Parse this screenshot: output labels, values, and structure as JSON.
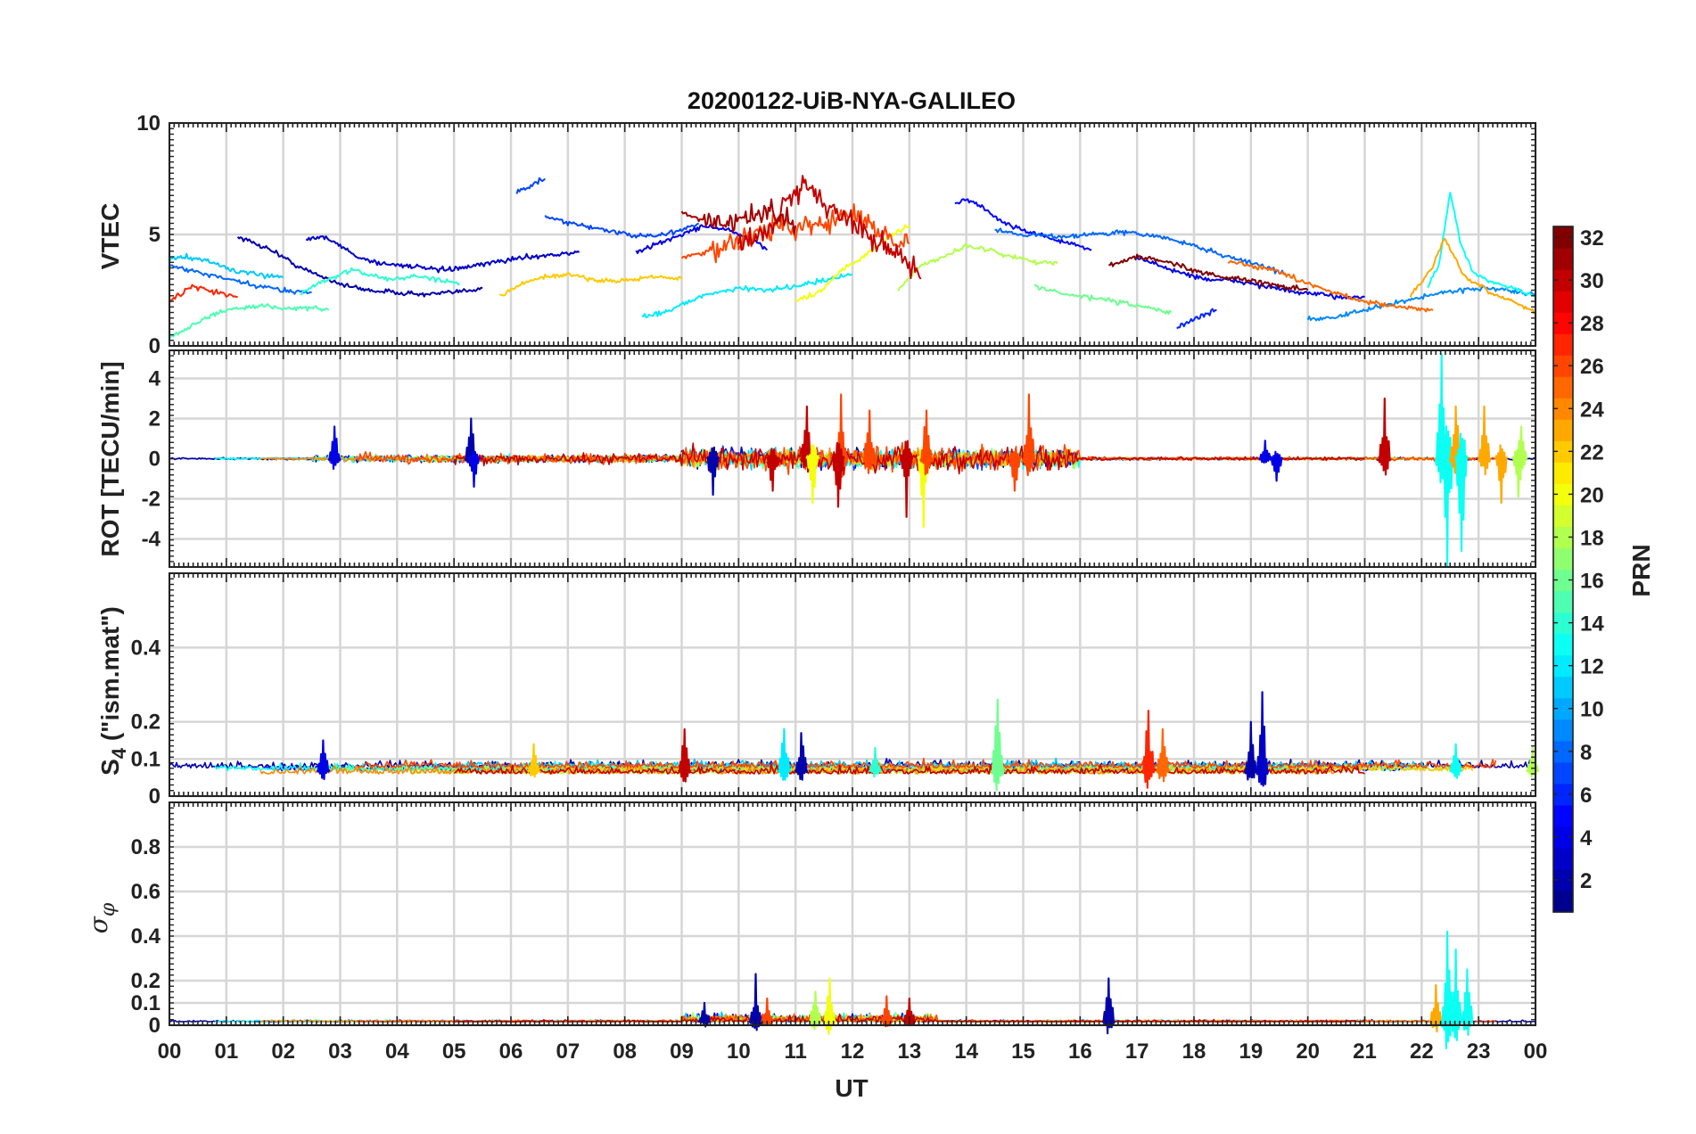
{
  "figure": {
    "title": "20200122-UiB-NYA-GALILEO",
    "xlabel": "UT",
    "x_ticks": [
      "00",
      "01",
      "02",
      "03",
      "04",
      "05",
      "06",
      "07",
      "08",
      "09",
      "10",
      "11",
      "12",
      "13",
      "14",
      "15",
      "16",
      "17",
      "18",
      "19",
      "20",
      "21",
      "22",
      "23",
      "00"
    ]
  },
  "colorbar": {
    "label": "PRN",
    "range": [
      1,
      32
    ],
    "ticks": [
      "2",
      "4",
      "6",
      "8",
      "10",
      "12",
      "14",
      "16",
      "18",
      "20",
      "22",
      "24",
      "26",
      "28",
      "30",
      "32"
    ],
    "colormap": "jet",
    "colors": [
      "#00008f",
      "#0000ff",
      "#0080ff",
      "#00ffff",
      "#80ff80",
      "#ffff00",
      "#ff8000",
      "#ff0000",
      "#800000"
    ]
  },
  "panels": {
    "vtec": {
      "ylabel": "VTEC",
      "ylim": [
        0,
        10
      ],
      "ytick_labels": [
        "0",
        "5",
        "10"
      ]
    },
    "rot": {
      "ylabel": "ROT [TECU/min]",
      "ylim": [
        -5.4,
        5.4
      ],
      "ytick_labels": [
        "-4",
        "-2",
        "0",
        "2",
        "4"
      ]
    },
    "s4": {
      "ylabel_main": "S",
      "ylabel_sub": "4",
      "ylabel_rest": " (\"ism.mat\")",
      "ylim": [
        0,
        0.6
      ],
      "ytick_labels": [
        "0",
        "0.1",
        "0.2",
        "0.4"
      ]
    },
    "sigma": {
      "ylabel_main": "σ",
      "ylabel_sub": "φ",
      "ylim": [
        0,
        1
      ],
      "ytick_labels": [
        "0",
        "0.1",
        "0.2",
        "0.4",
        "0.6",
        "0.8"
      ]
    }
  },
  "chart_data": [
    {
      "type": "line",
      "title": "20200122-UiB-NYA-GALILEO",
      "ylabel": "VTEC",
      "xlim": [
        0,
        24
      ],
      "ylim": [
        0,
        10
      ],
      "grid": true,
      "series": [
        {
          "prn": 2,
          "x": [
            1.2,
            1.8,
            2.3,
            2.8,
            3.1,
            3.5,
            4.0,
            4.5,
            5.0,
            5.5
          ],
          "y": [
            4.9,
            4.3,
            3.5,
            3.0,
            2.7,
            2.5,
            2.4,
            2.3,
            2.4,
            2.6
          ]
        },
        {
          "prn": 3,
          "x": [
            2.4,
            2.7,
            3.0,
            3.3,
            3.7,
            4.2,
            4.7,
            5.2,
            5.8,
            6.3,
            6.8,
            7.2
          ],
          "y": [
            4.8,
            4.9,
            4.5,
            4.0,
            3.7,
            3.6,
            3.4,
            3.5,
            3.8,
            4.0,
            4.1,
            4.2
          ]
        },
        {
          "prn": 4,
          "x": [
            8.2,
            8.6,
            9.0,
            9.4,
            9.8,
            10.2,
            10.5
          ],
          "y": [
            4.2,
            4.6,
            5.0,
            5.4,
            5.2,
            4.8,
            4.3
          ]
        },
        {
          "prn": 5,
          "x": [
            13.8,
            14.0,
            14.3,
            14.6,
            15.0,
            15.4,
            15.8,
            16.2
          ],
          "y": [
            6.4,
            6.6,
            6.2,
            5.6,
            5.2,
            4.9,
            4.6,
            4.3
          ]
        },
        {
          "prn": 6,
          "x": [
            17.7,
            17.9,
            18.1,
            18.4
          ],
          "y": [
            0.8,
            1.1,
            1.3,
            1.6
          ]
        },
        {
          "prn": 4,
          "x": [
            17.0,
            17.6,
            18.2,
            18.8,
            19.4,
            19.8,
            20.2,
            20.6,
            21.0
          ],
          "y": [
            4.0,
            3.4,
            3.0,
            2.9,
            2.6,
            2.4,
            2.3,
            2.2,
            2.2
          ]
        },
        {
          "prn": 7,
          "x": [
            6.1,
            6.3,
            6.5,
            6.6
          ],
          "y": [
            6.9,
            7.1,
            7.4,
            7.5
          ]
        },
        {
          "prn": 7,
          "x": [
            6.6,
            7.0,
            7.5,
            8.0,
            8.5,
            9.0,
            9.3
          ],
          "y": [
            5.8,
            5.5,
            5.3,
            5.0,
            4.9,
            5.2,
            5.5
          ]
        },
        {
          "prn": 8,
          "x": [
            0.0,
            0.5,
            1.0,
            1.5,
            2.0,
            2.5
          ],
          "y": [
            3.6,
            3.3,
            3.0,
            2.7,
            2.5,
            2.4
          ]
        },
        {
          "prn": 8,
          "x": [
            14.5,
            15.0,
            15.6,
            16.2,
            16.8,
            17.4,
            18.0,
            18.6,
            19.2,
            19.6
          ],
          "y": [
            5.2,
            5.0,
            4.9,
            5.0,
            5.1,
            4.9,
            4.5,
            4.0,
            3.6,
            3.2
          ]
        },
        {
          "prn": 9,
          "x": [
            20.0,
            20.5,
            21.0,
            21.5,
            22.0,
            22.6,
            23.2,
            23.7,
            24.0
          ],
          "y": [
            1.2,
            1.3,
            1.6,
            1.9,
            2.2,
            2.5,
            2.6,
            2.4,
            2.3
          ]
        },
        {
          "prn": 11,
          "x": [
            0.0,
            0.3,
            0.7,
            1.1,
            1.5,
            2.0
          ],
          "y": [
            3.9,
            4.0,
            3.8,
            3.4,
            3.2,
            3.1
          ]
        },
        {
          "prn": 12,
          "x": [
            8.3,
            8.8,
            9.2,
            9.6,
            10.0,
            10.4,
            10.8,
            11.2,
            11.6,
            12.0
          ],
          "y": [
            1.3,
            1.6,
            2.1,
            2.4,
            2.6,
            2.5,
            2.6,
            2.8,
            3.0,
            3.2
          ]
        },
        {
          "prn": 13,
          "x": [
            22.1,
            22.3,
            22.5,
            22.7,
            22.9,
            23.3,
            23.6,
            24.0
          ],
          "y": [
            2.6,
            3.6,
            6.9,
            4.5,
            3.3,
            2.8,
            2.6,
            2.2
          ]
        },
        {
          "prn": 14,
          "x": [
            2.3,
            2.6,
            2.9,
            3.2,
            3.5,
            3.9,
            4.3,
            4.7,
            5.1
          ],
          "y": [
            2.3,
            2.8,
            3.1,
            3.4,
            3.2,
            3.0,
            3.1,
            3.0,
            2.8
          ]
        },
        {
          "prn": 15,
          "x": [
            0.0,
            0.3,
            0.6,
            0.9,
            1.2,
            1.6,
            2.0,
            2.5,
            2.8
          ],
          "y": [
            0.4,
            0.8,
            1.2,
            1.5,
            1.7,
            1.8,
            1.7,
            1.7,
            1.6
          ]
        },
        {
          "prn": 16,
          "x": [
            15.2,
            15.6,
            16.0,
            16.4,
            16.8,
            17.2,
            17.6
          ],
          "y": [
            2.7,
            2.4,
            2.2,
            2.1,
            1.9,
            1.7,
            1.5
          ]
        },
        {
          "prn": 18,
          "x": [
            12.8,
            13.2,
            13.6,
            14.0,
            14.4,
            14.8,
            15.2,
            15.6
          ],
          "y": [
            2.5,
            3.6,
            4.0,
            4.5,
            4.3,
            4.0,
            3.8,
            3.7
          ]
        },
        {
          "prn": 20,
          "x": [
            11.0,
            11.4,
            11.8,
            12.2,
            12.6,
            13.0
          ],
          "y": [
            2.0,
            2.4,
            3.4,
            4.0,
            4.8,
            5.4
          ]
        },
        {
          "prn": 22,
          "x": [
            5.8,
            6.2,
            6.6,
            7.0,
            7.4,
            7.8,
            8.2,
            8.6,
            9.0
          ],
          "y": [
            2.2,
            2.8,
            3.1,
            3.2,
            3.0,
            2.9,
            3.0,
            3.1,
            3.0
          ]
        },
        {
          "prn": 23,
          "x": [
            21.8,
            22.2,
            22.4,
            22.6,
            22.8,
            23.2,
            23.6,
            24.0
          ],
          "y": [
            2.2,
            3.6,
            4.8,
            3.8,
            3.0,
            2.4,
            2.0,
            1.5
          ]
        },
        {
          "prn": 25,
          "x": [
            18.6,
            19.0,
            19.4,
            19.8,
            20.2,
            20.6,
            21.0,
            21.4,
            21.8,
            22.2
          ],
          "y": [
            3.8,
            3.6,
            3.4,
            3.0,
            2.6,
            2.3,
            2.0,
            1.8,
            1.7,
            1.6
          ]
        },
        {
          "prn": 26,
          "x": [
            9.0,
            9.5,
            10.0,
            10.5,
            11.0,
            11.5,
            12.0,
            12.5,
            13.0
          ],
          "y": [
            4.0,
            4.2,
            4.8,
            5.2,
            5.4,
            5.6,
            5.8,
            5.2,
            4.6
          ]
        },
        {
          "prn": 27,
          "x": [
            0.0,
            0.4,
            0.8,
            1.2
          ],
          "y": [
            2.0,
            2.7,
            2.4,
            2.2
          ]
        },
        {
          "prn": 30,
          "x": [
            10.0,
            10.5,
            10.8,
            11.2,
            11.6,
            12.0,
            12.4,
            12.8,
            13.2
          ],
          "y": [
            4.6,
            5.0,
            6.4,
            7.3,
            6.2,
            5.6,
            4.8,
            4.2,
            3.0
          ]
        },
        {
          "prn": 31,
          "x": [
            9.0,
            9.4,
            9.8,
            10.2,
            10.6,
            11.0
          ],
          "y": [
            6.0,
            5.6,
            5.3,
            5.8,
            6.0,
            5.4
          ]
        },
        {
          "prn": 32,
          "x": [
            16.5,
            17.0,
            17.5,
            18.0,
            18.5,
            19.0,
            19.5,
            20.0
          ],
          "y": [
            3.6,
            4.0,
            3.8,
            3.4,
            3.1,
            2.9,
            2.7,
            2.5
          ]
        }
      ]
    },
    {
      "type": "line",
      "ylabel": "ROT [TECU/min]",
      "xlim": [
        0,
        24
      ],
      "ylim": [
        -5.4,
        5.4
      ],
      "grid": true,
      "spikes": [
        {
          "prn": 4,
          "x": 2.9,
          "y": 1.6
        },
        {
          "prn": 2,
          "x": 5.3,
          "y": 2.0
        },
        {
          "prn": 4,
          "x": 5.35,
          "y": -1.4
        },
        {
          "prn": 2,
          "x": 9.55,
          "y": -1.8
        },
        {
          "prn": 30,
          "x": 10.6,
          "y": -1.6
        },
        {
          "prn": 30,
          "x": 11.2,
          "y": 2.6
        },
        {
          "prn": 20,
          "x": 11.3,
          "y": -2.2
        },
        {
          "prn": 26,
          "x": 11.8,
          "y": 3.2
        },
        {
          "prn": 30,
          "x": 11.75,
          "y": -2.4
        },
        {
          "prn": 26,
          "x": 12.3,
          "y": 2.4
        },
        {
          "prn": 30,
          "x": 12.95,
          "y": -2.9
        },
        {
          "prn": 20,
          "x": 13.25,
          "y": -3.4
        },
        {
          "prn": 26,
          "x": 13.3,
          "y": 2.4
        },
        {
          "prn": 26,
          "x": 15.1,
          "y": 3.2
        },
        {
          "prn": 26,
          "x": 14.85,
          "y": -1.6
        },
        {
          "prn": 4,
          "x": 19.25,
          "y": 0.9
        },
        {
          "prn": 4,
          "x": 19.45,
          "y": -1.1
        },
        {
          "prn": 30,
          "x": 21.35,
          "y": 3.0
        },
        {
          "prn": 13,
          "x": 22.35,
          "y": 5.2
        },
        {
          "prn": 13,
          "x": 22.45,
          "y": -5.4
        },
        {
          "prn": 23,
          "x": 22.6,
          "y": 2.6
        },
        {
          "prn": 13,
          "x": 22.7,
          "y": -4.6
        },
        {
          "prn": 23,
          "x": 23.1,
          "y": 2.6
        },
        {
          "prn": 23,
          "x": 23.4,
          "y": -2.2
        },
        {
          "prn": 18,
          "x": 23.75,
          "y": 1.6
        },
        {
          "prn": 18,
          "x": 23.7,
          "y": -1.9
        }
      ]
    },
    {
      "type": "line",
      "ylabel": "S4 (\"ism.mat\")",
      "xlim": [
        0,
        24
      ],
      "ylim": [
        0,
        0.6
      ],
      "grid": true,
      "spikes": [
        {
          "prn": 4,
          "x": 2.7,
          "y": 0.15
        },
        {
          "prn": 22,
          "x": 6.4,
          "y": 0.14
        },
        {
          "prn": 30,
          "x": 9.05,
          "y": 0.18
        },
        {
          "prn": 12,
          "x": 10.8,
          "y": 0.18
        },
        {
          "prn": 2,
          "x": 11.1,
          "y": 0.17
        },
        {
          "prn": 14,
          "x": 12.4,
          "y": 0.13
        },
        {
          "prn": 16,
          "x": 14.55,
          "y": 0.26
        },
        {
          "prn": 27,
          "x": 17.2,
          "y": 0.23
        },
        {
          "prn": 25,
          "x": 17.45,
          "y": 0.18
        },
        {
          "prn": 3,
          "x": 19.2,
          "y": 0.28
        },
        {
          "prn": 2,
          "x": 19.0,
          "y": 0.2
        },
        {
          "prn": 13,
          "x": 22.6,
          "y": 0.14
        },
        {
          "prn": 18,
          "x": 23.95,
          "y": 0.13
        }
      ]
    },
    {
      "type": "line",
      "ylabel": "σφ",
      "xlim": [
        0,
        24
      ],
      "ylim": [
        0,
        1
      ],
      "grid": true,
      "spikes": [
        {
          "prn": 2,
          "x": 9.4,
          "y": 0.1
        },
        {
          "prn": 2,
          "x": 10.3,
          "y": 0.23
        },
        {
          "prn": 26,
          "x": 10.5,
          "y": 0.12
        },
        {
          "prn": 20,
          "x": 11.6,
          "y": 0.21
        },
        {
          "prn": 18,
          "x": 11.35,
          "y": 0.15
        },
        {
          "prn": 26,
          "x": 12.6,
          "y": 0.13
        },
        {
          "prn": 30,
          "x": 13.0,
          "y": 0.12
        },
        {
          "prn": 2,
          "x": 16.5,
          "y": 0.21
        },
        {
          "prn": 23,
          "x": 22.25,
          "y": 0.18
        },
        {
          "prn": 13,
          "x": 22.45,
          "y": 0.42
        },
        {
          "prn": 13,
          "x": 22.6,
          "y": 0.34
        },
        {
          "prn": 13,
          "x": 22.8,
          "y": 0.25
        }
      ]
    }
  ]
}
